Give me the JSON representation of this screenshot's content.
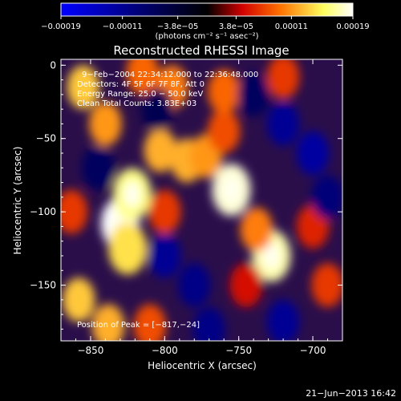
{
  "chart_data": {
    "type": "heatmap",
    "title": "Reconstructed RHESSI Image",
    "xlabel": "Heliocentric X (arcsec)",
    "ylabel": "Heliocentric Y (arcsec)",
    "xlim": [
      -870,
      -680
    ],
    "ylim": [
      -188,
      4
    ],
    "x_ticks": [
      -850,
      -800,
      -750,
      -700
    ],
    "x_tick_labels": [
      "−850",
      "−800",
      "−750",
      "−700"
    ],
    "y_ticks": [
      0,
      -50,
      -100,
      -150
    ],
    "y_tick_labels": [
      "0",
      "−50",
      "−100",
      "−150"
    ],
    "colorbar": {
      "range": [
        -0.00019,
        0.00019
      ],
      "ticks": [
        -0.00019,
        -0.00011,
        -3.8e-05,
        3.8e-05,
        0.00011,
        0.00019
      ],
      "tick_labels": [
        "−0.00019",
        "−0.00011",
        "−3.8e−05",
        "3.8e−05",
        "0.00011",
        "0.00019"
      ],
      "unit_label": "(photons cm⁻² s⁻¹ asec⁻²)",
      "colors": [
        "#0000ff",
        "#000000",
        "#d00000",
        "#ff8000",
        "#ffff60",
        "#ffffff"
      ]
    },
    "annotations": [
      "9−Feb−2004 22:34:12.000 to 22:36:48.000",
      "Detectors: 4F 5F 6F 7F 8F, Att 0",
      "Energy Range: 25.0 − 50.0 keV",
      "Clean     Total Counts: 3.83E+03"
    ],
    "peak_label": "Position of Peak = [−817,−24]",
    "peak": [
      -817,
      -24
    ],
    "sources": [
      {
        "x": -830,
        "y": -108,
        "value": 0.00019
      },
      {
        "x": -822,
        "y": -88,
        "value": 0.00016
      },
      {
        "x": -825,
        "y": -125,
        "value": 0.00014
      },
      {
        "x": -855,
        "y": -15,
        "value": 0.00013
      },
      {
        "x": -840,
        "y": -40,
        "value": 0.00011
      },
      {
        "x": -795,
        "y": -15,
        "value": 0.0001
      },
      {
        "x": -803,
        "y": -58,
        "value": 0.00012
      },
      {
        "x": -785,
        "y": -65,
        "value": 0.00012
      },
      {
        "x": -755,
        "y": -85,
        "value": 0.00018
      },
      {
        "x": -772,
        "y": -62,
        "value": 0.00011
      },
      {
        "x": -760,
        "y": -45,
        "value": 8e-05
      },
      {
        "x": -728,
        "y": -130,
        "value": 0.00017
      },
      {
        "x": -738,
        "y": -112,
        "value": 0.0001
      },
      {
        "x": -760,
        "y": -18,
        "value": 9e-05
      },
      {
        "x": -720,
        "y": -8,
        "value": 7e-05
      },
      {
        "x": -815,
        "y": -5,
        "value": 9e-05
      },
      {
        "x": -858,
        "y": -160,
        "value": 0.00013
      },
      {
        "x": -838,
        "y": -178,
        "value": 0.00012
      },
      {
        "x": -810,
        "y": -178,
        "value": 8e-05
      },
      {
        "x": -863,
        "y": -100,
        "value": 7e-05
      },
      {
        "x": -800,
        "y": -100,
        "value": 7e-05
      },
      {
        "x": -690,
        "y": -150,
        "value": 7e-05
      },
      {
        "x": -700,
        "y": -110,
        "value": 6e-05
      },
      {
        "x": -745,
        "y": -150,
        "value": 5e-05
      },
      {
        "x": -780,
        "y": -150,
        "value": -0.0001
      },
      {
        "x": -700,
        "y": -60,
        "value": -0.00012
      },
      {
        "x": -720,
        "y": -40,
        "value": -0.00011
      },
      {
        "x": -800,
        "y": -130,
        "value": -0.00011
      },
      {
        "x": -845,
        "y": -70,
        "value": -7e-05
      },
      {
        "x": -720,
        "y": -175,
        "value": -0.00011
      },
      {
        "x": -690,
        "y": -90,
        "value": -9e-05
      },
      {
        "x": -740,
        "y": -20,
        "value": -7e-05
      },
      {
        "x": -770,
        "y": -180,
        "value": -0.0001
      },
      {
        "x": -805,
        "y": -30,
        "value": -6e-05
      }
    ]
  },
  "footer": {
    "timestamp": "21−Jun−2013 16:42"
  }
}
